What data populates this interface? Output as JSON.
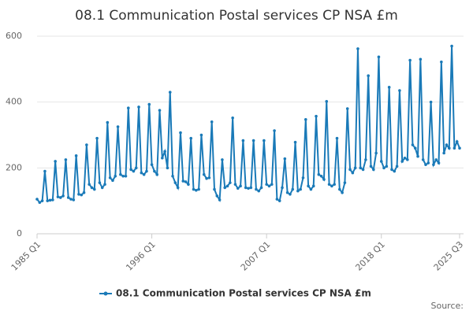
{
  "chart_data": {
    "type": "line",
    "title": "08.1 Communication Postal services CP NSA £m",
    "categories": [
      "1985 Q1",
      null,
      null,
      null,
      null,
      null,
      null,
      null,
      null,
      null,
      null,
      null,
      null,
      null,
      null,
      null,
      null,
      null,
      null,
      null,
      null,
      null,
      null,
      null,
      null,
      null,
      null,
      null,
      null,
      null,
      null,
      null,
      null,
      null,
      null,
      null,
      null,
      null,
      null,
      null,
      null,
      null,
      null,
      null,
      "1996 Q1",
      null,
      null,
      null,
      null,
      null,
      null,
      null,
      null,
      null,
      null,
      null,
      null,
      null,
      null,
      null,
      null,
      null,
      null,
      null,
      null,
      null,
      null,
      null,
      null,
      null,
      null,
      null,
      null,
      null,
      null,
      null,
      null,
      null,
      null,
      null,
      null,
      null,
      null,
      null,
      null,
      null,
      null,
      null,
      "2007 Q1",
      null,
      null,
      null,
      null,
      null,
      null,
      null,
      null,
      null,
      null,
      null,
      null,
      null,
      null,
      null,
      null,
      null,
      null,
      null,
      null,
      null,
      null,
      null,
      null,
      null,
      null,
      null,
      null,
      null,
      null,
      null,
      null,
      null,
      null,
      null,
      null,
      null,
      null,
      null,
      null,
      null,
      null,
      null,
      "2018 Q1",
      null,
      null,
      null,
      null,
      null,
      null,
      null,
      null,
      null,
      null,
      null,
      null,
      null,
      null,
      null,
      null,
      null,
      null,
      null,
      null,
      null,
      null,
      null,
      null,
      null,
      null,
      null,
      null,
      null,
      "2025 Q3"
    ],
    "series": [
      {
        "name": "08.1 Communication Postal services CP NSA £m",
        "color": "#1a7ab8",
        "values": [
          105,
          95,
          100,
          190,
          100,
          102,
          103,
          220,
          112,
          110,
          115,
          225,
          110,
          105,
          103,
          237,
          120,
          118,
          125,
          270,
          150,
          140,
          135,
          290,
          155,
          140,
          150,
          338,
          170,
          162,
          175,
          325,
          180,
          175,
          175,
          382,
          195,
          190,
          200,
          385,
          185,
          180,
          190,
          393,
          210,
          190,
          180,
          375,
          230,
          250,
          200,
          430,
          175,
          155,
          140,
          307,
          160,
          158,
          150,
          290,
          135,
          132,
          135,
          300,
          180,
          168,
          170,
          340,
          135,
          115,
          103,
          225,
          140,
          145,
          155,
          352,
          150,
          138,
          145,
          283,
          140,
          138,
          140,
          283,
          135,
          130,
          140,
          283,
          150,
          145,
          150,
          313,
          105,
          100,
          140,
          228,
          125,
          120,
          135,
          278,
          130,
          135,
          170,
          347,
          145,
          135,
          145,
          357,
          180,
          175,
          165,
          402,
          150,
          145,
          150,
          290,
          135,
          125,
          155,
          380,
          195,
          185,
          200,
          562,
          200,
          195,
          225,
          480,
          205,
          195,
          245,
          537,
          220,
          200,
          205,
          445,
          195,
          190,
          205,
          435,
          220,
          230,
          225,
          527,
          270,
          260,
          235,
          530,
          225,
          210,
          215,
          400,
          210,
          225,
          215,
          522,
          245,
          270,
          260,
          570,
          260,
          280,
          260
        ]
      }
    ],
    "ylim": [
      0,
      600
    ],
    "yticks": [
      0,
      200,
      400,
      600
    ],
    "grid": true,
    "legend": "bottom",
    "source": "Source:"
  }
}
